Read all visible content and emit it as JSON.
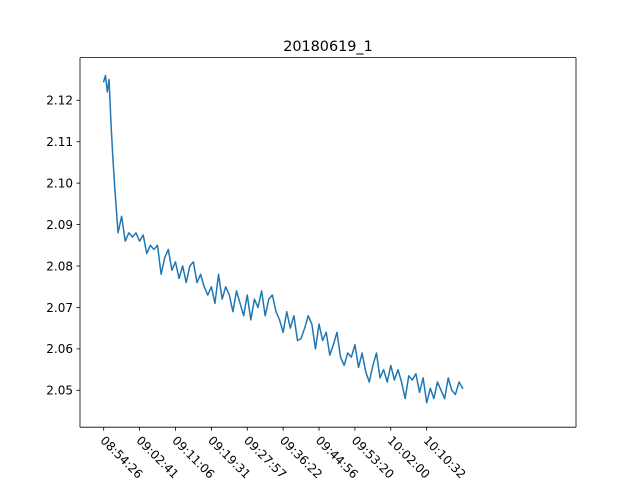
{
  "chart_data": {
    "type": "line",
    "title": "20180619_1",
    "xlabel": "",
    "ylabel": "",
    "grid": false,
    "legend": "none",
    "xlim": [
      -6.6,
      131.6
    ],
    "ylim": [
      2.0411,
      2.1303
    ],
    "x_tick_positions": [
      0,
      10,
      20,
      30,
      40,
      50,
      60,
      70,
      80,
      90
    ],
    "x_tick_labels": [
      "08:54:26",
      "09:02:41",
      "09:11:06",
      "09:19:31",
      "09:27:57",
      "09:36:22",
      "09:44:56",
      "09:53:20",
      "10:02:00",
      "10:10:32"
    ],
    "y_ticks": [
      2.05,
      2.06,
      2.07,
      2.08,
      2.09,
      2.1,
      2.11,
      2.12
    ],
    "y_tick_labels": [
      "2.05",
      "2.06",
      "2.07",
      "2.08",
      "2.09",
      "2.10",
      "2.11",
      "2.12"
    ],
    "series": [
      {
        "name": "20180619_1",
        "color": "#1f77b4",
        "x": [
          0,
          0.5,
          1,
          1.5,
          2,
          2.5,
          3,
          4,
          5,
          6,
          7,
          8,
          9,
          10,
          11,
          12,
          13,
          14,
          15,
          16,
          17,
          18,
          19,
          20,
          21,
          22,
          23,
          24,
          25,
          26,
          27,
          28,
          29,
          30,
          31,
          32,
          33,
          34,
          35,
          36,
          37,
          38,
          39,
          40,
          41,
          42,
          43,
          44,
          45,
          46,
          47,
          48,
          49,
          50,
          51,
          52,
          53,
          54,
          55,
          56,
          57,
          58,
          59,
          60,
          61,
          62,
          63,
          64,
          65,
          66,
          67,
          68,
          69,
          70,
          71,
          72,
          73,
          74,
          75,
          76,
          77,
          78,
          79,
          80,
          81,
          82,
          83,
          84,
          85,
          86,
          87,
          88,
          89,
          90,
          91,
          92,
          93,
          94,
          95,
          96,
          97,
          98,
          99,
          100
        ],
        "y": [
          2.1245,
          2.126,
          2.122,
          2.125,
          2.115,
          2.107,
          2.1,
          2.088,
          2.092,
          2.086,
          2.088,
          2.087,
          2.088,
          2.086,
          2.0875,
          2.083,
          2.085,
          2.084,
          2.085,
          2.078,
          2.082,
          2.084,
          2.079,
          2.081,
          2.077,
          2.08,
          2.076,
          2.08,
          2.081,
          2.076,
          2.078,
          2.075,
          2.073,
          2.075,
          2.071,
          2.078,
          2.072,
          2.075,
          2.073,
          2.069,
          2.074,
          2.071,
          2.068,
          2.073,
          2.067,
          2.072,
          2.07,
          2.074,
          2.068,
          2.072,
          2.073,
          2.069,
          2.067,
          2.064,
          2.069,
          2.065,
          2.068,
          2.062,
          2.0625,
          2.065,
          2.068,
          2.066,
          2.06,
          2.066,
          2.062,
          2.064,
          2.0585,
          2.061,
          2.064,
          2.058,
          2.056,
          2.059,
          2.058,
          2.061,
          2.0555,
          2.059,
          2.0545,
          2.052,
          2.056,
          2.059,
          2.053,
          2.055,
          2.052,
          2.056,
          2.0525,
          2.055,
          2.052,
          2.048,
          2.0535,
          2.0525,
          2.054,
          2.0495,
          2.053,
          2.047,
          2.0505,
          2.048,
          2.052,
          2.05,
          2.048,
          2.053,
          2.05,
          2.049,
          2.052,
          2.0505
        ]
      }
    ]
  }
}
